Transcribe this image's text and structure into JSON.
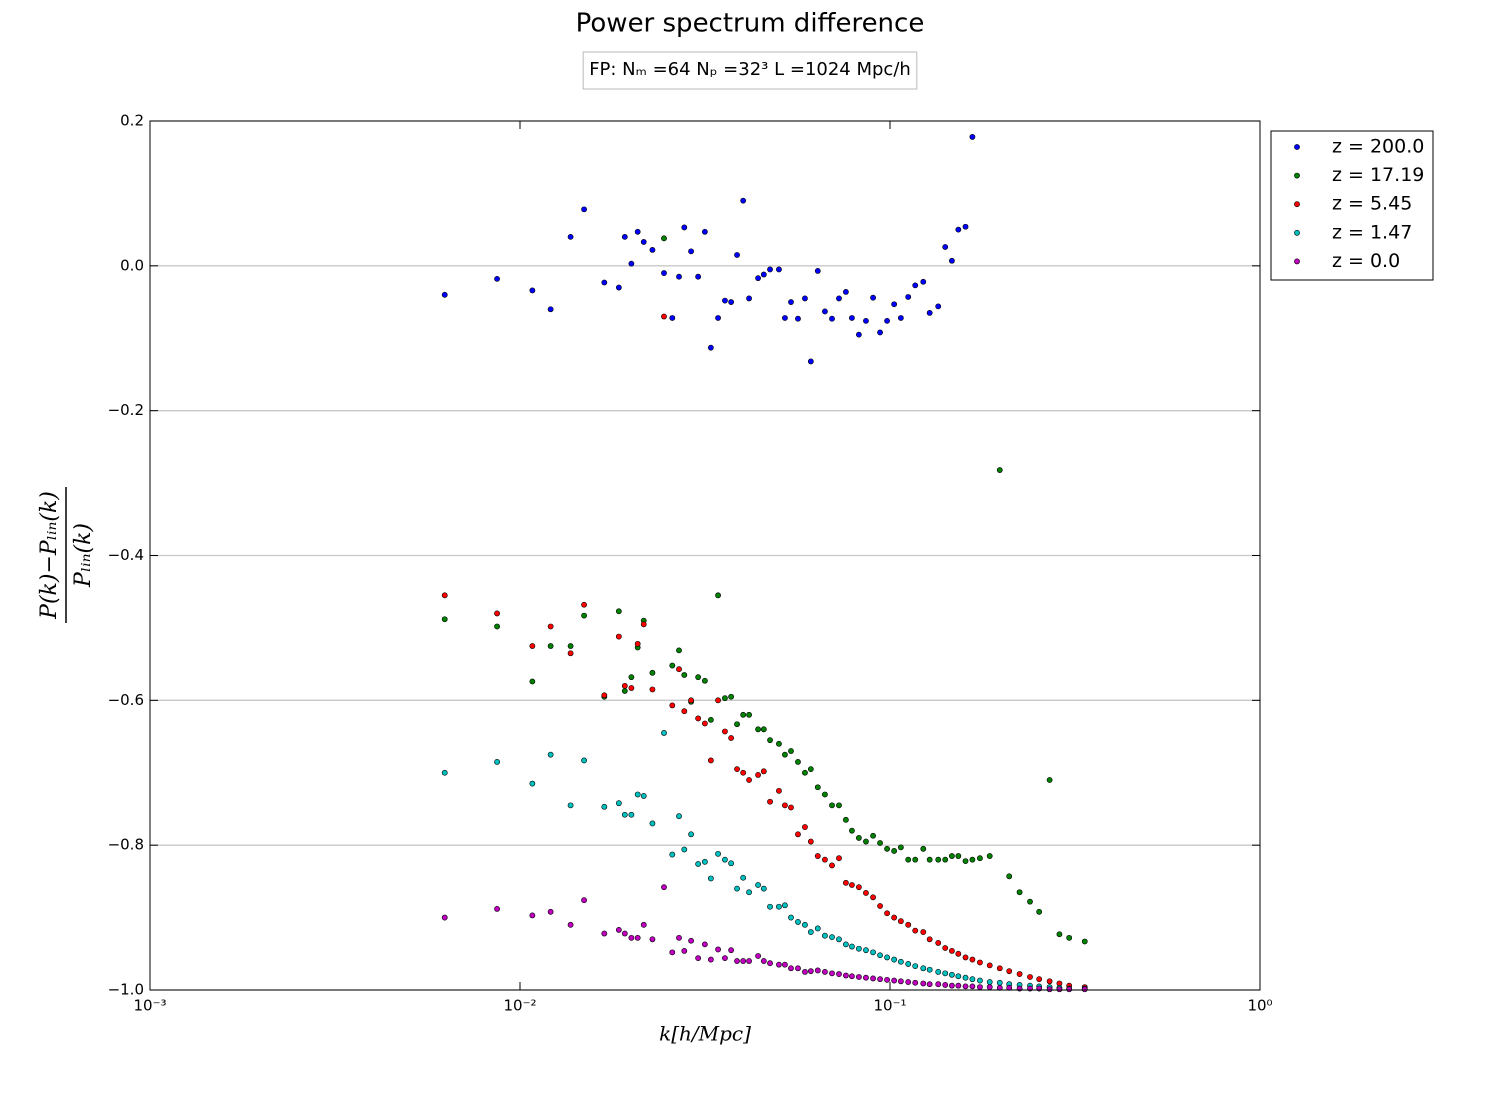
{
  "chart_data": {
    "type": "scatter",
    "title": "Power spectrum difference",
    "subtitle": "FP:  Nₘ =64   Nₚ =32³    L =1024 Mpc/h",
    "xlabel": "k[h/Mpc]",
    "ylabel": {
      "numerator": "P(k)−Pₗᵢₙ(k)",
      "denominator": "Pₗᵢₙ(k)"
    },
    "xscale": "log",
    "xlim": [
      0.001,
      1
    ],
    "xticks": [
      {
        "value": 0.001,
        "label": "10⁻³"
      },
      {
        "value": 0.01,
        "label": "10⁻²"
      },
      {
        "value": 0.1,
        "label": "10⁻¹"
      },
      {
        "value": 1,
        "label": "10⁰"
      }
    ],
    "ylim": [
      -1,
      0.2
    ],
    "yticks": [
      0.2,
      {
        "value": 0,
        "label": "0.0"
      },
      {
        "value": -0.2,
        "label": "−0.2"
      },
      {
        "value": -0.4,
        "label": "−0.4"
      },
      {
        "value": -0.6,
        "label": "−0.6"
      },
      {
        "value": -0.8,
        "label": "−0.8"
      },
      {
        "value": -1,
        "label": "−1.0"
      }
    ],
    "grid": "y",
    "legend": "outside-right",
    "x": [
      0.00626,
      0.00867,
      0.0108,
      0.0121,
      0.0137,
      0.0149,
      0.0169,
      0.0185,
      0.0192,
      0.02,
      0.0208,
      0.0216,
      0.0228,
      0.0245,
      0.0258,
      0.0269,
      0.0278,
      0.029,
      0.0303,
      0.0316,
      0.0328,
      0.0343,
      0.0358,
      0.0372,
      0.0386,
      0.0401,
      0.0416,
      0.044,
      0.0456,
      0.0474,
      0.0501,
      0.052,
      0.054,
      0.0564,
      0.0589,
      0.0611,
      0.0638,
      0.0667,
      0.0697,
      0.0728,
      0.076,
      0.0789,
      0.0824,
      0.0861,
      0.09,
      0.094,
      0.0982,
      0.1026,
      0.107,
      0.112,
      0.117,
      0.123,
      0.128,
      0.135,
      0.141,
      0.147,
      0.153,
      0.16,
      0.167,
      0.175,
      0.186,
      0.198,
      0.21,
      0.224,
      0.239,
      0.253,
      0.27,
      0.287,
      0.305,
      0.336
    ],
    "series": [
      {
        "name": "z = 200.0",
        "color": "#0000ff",
        "values": [
          -0.04,
          -0.018,
          -0.034,
          -0.06,
          0.04,
          0.078,
          -0.023,
          -0.03,
          0.04,
          0.003,
          0.047,
          0.033,
          0.022,
          -0.01,
          -0.072,
          -0.015,
          0.053,
          0.02,
          -0.015,
          0.047,
          -0.113,
          -0.072,
          -0.048,
          -0.05,
          0.015,
          0.09,
          -0.045,
          -0.017,
          -0.012,
          -0.005,
          -0.005,
          -0.072,
          -0.05,
          -0.073,
          -0.045,
          -0.132,
          -0.007,
          -0.063,
          -0.073,
          -0.045,
          -0.036,
          -0.072,
          -0.095,
          -0.076,
          -0.044,
          -0.092,
          -0.076,
          -0.053,
          -0.072,
          -0.043,
          -0.027,
          -0.022,
          -0.065,
          -0.056,
          0.026,
          0.007,
          0.05,
          0.054,
          0.178,
          null,
          null,
          null,
          null,
          null,
          null,
          null,
          null,
          null,
          null,
          null
        ]
      },
      {
        "name": "z = 17.19",
        "color": "#008000",
        "values": [
          -0.488,
          -0.498,
          -0.574,
          -0.525,
          -0.525,
          -0.483,
          -0.595,
          -0.477,
          -0.587,
          -0.568,
          -0.527,
          -0.49,
          -0.562,
          0.038,
          -0.552,
          -0.531,
          -0.565,
          -0.602,
          -0.568,
          -0.573,
          -0.627,
          -0.455,
          -0.597,
          -0.595,
          -0.633,
          -0.62,
          -0.62,
          -0.64,
          -0.64,
          -0.655,
          -0.66,
          -0.675,
          -0.67,
          -0.685,
          -0.7,
          -0.695,
          -0.72,
          -0.73,
          -0.745,
          -0.745,
          -0.765,
          -0.78,
          -0.79,
          -0.795,
          -0.787,
          -0.797,
          -0.805,
          -0.808,
          -0.803,
          -0.82,
          -0.82,
          -0.805,
          -0.82,
          -0.82,
          -0.82,
          -0.815,
          -0.815,
          -0.822,
          -0.82,
          -0.818,
          -0.815,
          -0.282,
          -0.843,
          -0.865,
          -0.878,
          -0.892,
          -0.71,
          -0.923,
          -0.928,
          -0.933
        ]
      },
      {
        "name": "z = 5.45",
        "color": "#ff0000",
        "values": [
          -0.455,
          -0.48,
          -0.525,
          -0.498,
          -0.535,
          -0.468,
          -0.593,
          -0.512,
          -0.58,
          -0.583,
          -0.522,
          -0.495,
          -0.585,
          -0.07,
          -0.607,
          -0.557,
          -0.615,
          -0.6,
          -0.625,
          -0.632,
          -0.683,
          -0.6,
          -0.643,
          -0.652,
          -0.695,
          -0.7,
          -0.71,
          -0.703,
          -0.698,
          -0.74,
          -0.725,
          -0.745,
          -0.748,
          -0.785,
          -0.775,
          -0.795,
          -0.815,
          -0.82,
          -0.828,
          -0.818,
          -0.852,
          -0.855,
          -0.858,
          -0.866,
          -0.872,
          -0.884,
          -0.894,
          -0.9,
          -0.905,
          -0.91,
          -0.918,
          -0.92,
          -0.93,
          -0.935,
          -0.942,
          -0.946,
          -0.95,
          -0.955,
          -0.958,
          -0.962,
          -0.966,
          -0.97,
          -0.974,
          -0.978,
          -0.982,
          -0.985,
          -0.988,
          -0.991,
          -0.994,
          -0.996
        ]
      },
      {
        "name": "z = 1.47",
        "color": "#00bfbf",
        "values": [
          -0.7,
          -0.685,
          -0.715,
          -0.675,
          -0.745,
          -0.683,
          -0.747,
          -0.742,
          -0.758,
          -0.758,
          -0.73,
          -0.732,
          -0.77,
          -0.645,
          -0.813,
          -0.76,
          -0.806,
          -0.785,
          -0.826,
          -0.823,
          -0.846,
          -0.812,
          -0.82,
          -0.825,
          -0.86,
          -0.845,
          -0.865,
          -0.855,
          -0.86,
          -0.885,
          -0.885,
          -0.883,
          -0.9,
          -0.906,
          -0.91,
          -0.92,
          -0.915,
          -0.925,
          -0.927,
          -0.93,
          -0.937,
          -0.94,
          -0.943,
          -0.945,
          -0.948,
          -0.952,
          -0.955,
          -0.958,
          -0.961,
          -0.964,
          -0.967,
          -0.97,
          -0.972,
          -0.975,
          -0.977,
          -0.979,
          -0.981,
          -0.983,
          -0.985,
          -0.987,
          -0.989,
          -0.99,
          -0.992,
          -0.993,
          -0.994,
          -0.995,
          -0.996,
          -0.997,
          -0.998,
          -0.998
        ]
      },
      {
        "name": "z = 0.0",
        "color": "#bf00bf",
        "values": [
          -0.9,
          -0.888,
          -0.897,
          -0.892,
          -0.91,
          -0.876,
          -0.922,
          -0.917,
          -0.922,
          -0.928,
          -0.928,
          -0.91,
          -0.93,
          -0.858,
          -0.948,
          -0.928,
          -0.946,
          -0.932,
          -0.956,
          -0.937,
          -0.958,
          -0.944,
          -0.956,
          -0.945,
          -0.96,
          -0.96,
          -0.96,
          -0.953,
          -0.96,
          -0.963,
          -0.965,
          -0.965,
          -0.97,
          -0.97,
          -0.975,
          -0.974,
          -0.973,
          -0.975,
          -0.977,
          -0.978,
          -0.98,
          -0.981,
          -0.982,
          -0.983,
          -0.984,
          -0.985,
          -0.986,
          -0.987,
          -0.988,
          -0.989,
          -0.99,
          -0.991,
          -0.992,
          -0.992,
          -0.993,
          -0.994,
          -0.994,
          -0.995,
          -0.995,
          -0.996,
          -0.996,
          -0.997,
          -0.997,
          -0.998,
          -0.998,
          -0.998,
          -0.999,
          -0.999,
          -0.999,
          -0.999
        ]
      }
    ]
  }
}
